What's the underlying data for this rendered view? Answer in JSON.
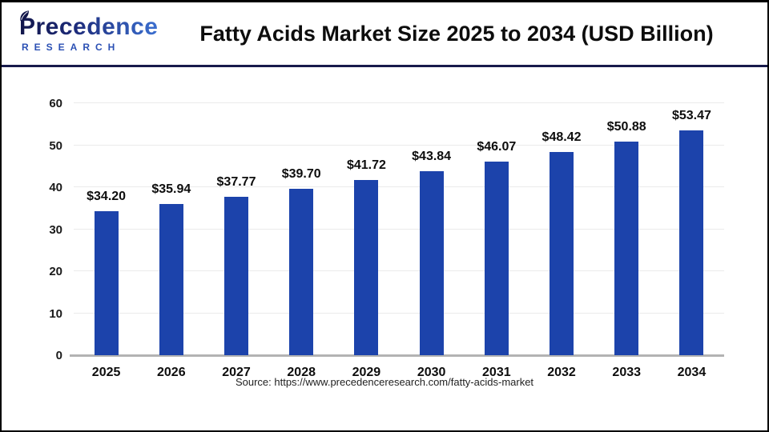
{
  "header": {
    "logo_name": "Precedence",
    "logo_subname": "RESEARCH",
    "title": "Fatty Acids Market Size 2025 to 2034 (USD Billion)"
  },
  "chart_data": {
    "type": "bar",
    "title": "Fatty Acids Market Size 2025 to 2034 (USD Billion)",
    "categories": [
      "2025",
      "2026",
      "2027",
      "2028",
      "2029",
      "2030",
      "2031",
      "2032",
      "2033",
      "2034"
    ],
    "values": [
      34.2,
      35.94,
      37.77,
      39.7,
      41.72,
      43.84,
      46.07,
      48.42,
      50.88,
      53.47
    ],
    "value_labels": [
      "$34.20",
      "$35.94",
      "$37.77",
      "$39.70",
      "$41.72",
      "$43.84",
      "$46.07",
      "$48.42",
      "$50.88",
      "$53.47"
    ],
    "xlabel": "",
    "ylabel": "",
    "ylim": [
      0,
      60
    ],
    "yticks": [
      0,
      10,
      20,
      30,
      40,
      50,
      60
    ],
    "grid": true,
    "legend": "none",
    "bar_color": "#1c43ab"
  },
  "footer": {
    "source": "Source: https://www.precedenceresearch.com/fatty-acids-market"
  },
  "colors": {
    "bar": "#1c43ab",
    "divider_navy": "#171a4b",
    "logo_dark": "#12164a",
    "logo_blue": "#2b50b4",
    "gridline": "#ebebeb",
    "baseline": "#b3b3b3",
    "text": "#0d0d0d"
  }
}
